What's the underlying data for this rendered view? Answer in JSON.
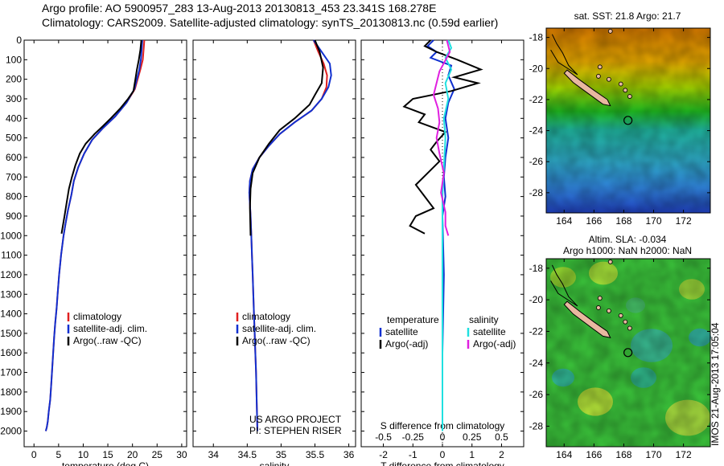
{
  "header": {
    "line1": "Argo profile: AO 5900957_283 13-Aug-2013 20130813_453 23.341S 168.278E",
    "line2": "Climatology: CARS2009. Satellite-adjusted climatology: synTS_20130813.nc (0.59d earlier)"
  },
  "colors": {
    "climatology": "#e02020",
    "satellite": "#1030d0",
    "argo": "#000000",
    "sat_salinity": "#20e0e0",
    "argo_salinity": "#e020e0"
  },
  "chart_data": [
    {
      "type": "line",
      "xlabel": "temperature (deg C)",
      "ylabel": "",
      "xlim": [
        -2,
        31
      ],
      "ylim": [
        0,
        2080
      ],
      "y_inverted": true,
      "xticks": [
        0,
        5,
        10,
        15,
        20,
        25,
        30
      ],
      "yticks": [
        0,
        100,
        200,
        300,
        400,
        500,
        600,
        700,
        800,
        900,
        1000,
        1100,
        1200,
        1300,
        1400,
        1500,
        1600,
        1700,
        1800,
        1900,
        2000
      ],
      "legend_position": "bottom-center",
      "series": [
        {
          "name": "climatology",
          "color": "#e02020",
          "x": [
            22.4,
            22.3,
            22.1,
            21.6,
            20.5,
            18.8,
            16.5,
            14,
            11.8,
            10.2,
            9,
            8.1,
            7.6,
            6.9,
            6.4,
            6,
            5.5,
            5.1,
            4.8,
            4.6,
            4.3,
            4.1,
            3.9,
            3.7,
            3.5,
            3.3,
            3,
            2.8,
            2.6,
            2.4
          ],
          "y": [
            0,
            40,
            100,
            150,
            250,
            320,
            390,
            450,
            510,
            580,
            650,
            720,
            790,
            870,
            940,
            1000,
            1100,
            1200,
            1300,
            1370,
            1450,
            1520,
            1600,
            1680,
            1760,
            1840,
            1900,
            1950,
            1980,
            2000
          ]
        },
        {
          "name": "satellite-adj. clim.",
          "color": "#1030d0",
          "x": [
            22,
            21.9,
            21.7,
            21.4,
            20.4,
            18.8,
            16.5,
            14,
            11.8,
            10.2,
            9,
            8.1,
            7.6,
            6.9,
            6.4,
            6,
            5.5,
            5.1,
            4.8,
            4.6,
            4.3,
            4.1,
            3.9,
            3.7,
            3.5,
            3.3,
            3,
            2.8,
            2.6,
            2.4
          ],
          "y": [
            0,
            40,
            100,
            150,
            250,
            320,
            390,
            450,
            510,
            580,
            650,
            720,
            790,
            870,
            940,
            1000,
            1100,
            1200,
            1300,
            1370,
            1450,
            1520,
            1600,
            1680,
            1760,
            1840,
            1900,
            1950,
            1980,
            2000
          ]
        },
        {
          "name": "Argo(..raw -QC)",
          "color": "#000000",
          "x": [
            21.8,
            21.6,
            21.3,
            20.9,
            20.6,
            20.2,
            19.1,
            17.5,
            15.6,
            14,
            12.3,
            10.5,
            9.3,
            8.4,
            7.7,
            7.1,
            6.7,
            6.2,
            5.6
          ],
          "y": [
            0,
            50,
            100,
            150,
            200,
            260,
            300,
            350,
            400,
            440,
            480,
            530,
            580,
            640,
            700,
            760,
            820,
            900,
            990
          ]
        }
      ],
      "legend": [
        "climatology",
        "satellite-adj. clim.",
        "Argo(..raw -QC)"
      ]
    },
    {
      "type": "line",
      "xlabel": "salinity",
      "xlim": [
        33.7,
        36.1
      ],
      "ylim": [
        0,
        2080
      ],
      "y_inverted": true,
      "xticks": [
        34,
        34.5,
        35,
        35.5,
        36
      ],
      "legend_position": "bottom-center",
      "series": [
        {
          "name": "climatology",
          "color": "#e02020",
          "x": [
            35.48,
            35.55,
            35.63,
            35.68,
            35.67,
            35.6,
            35.45,
            35.2,
            34.98,
            34.82,
            34.68,
            34.58,
            34.54,
            34.53,
            34.54,
            34.55,
            34.56,
            34.57,
            34.58,
            34.59,
            34.6,
            34.61,
            34.62,
            34.63,
            34.64,
            34.65
          ],
          "y": [
            0,
            60,
            120,
            180,
            240,
            300,
            360,
            420,
            480,
            540,
            600,
            660,
            720,
            780,
            840,
            900,
            1000,
            1100,
            1200,
            1300,
            1400,
            1500,
            1600,
            1700,
            1850,
            2000
          ]
        },
        {
          "name": "satellite-adj. clim.",
          "color": "#1030d0",
          "x": [
            35.48,
            35.6,
            35.72,
            35.74,
            35.7,
            35.6,
            35.45,
            35.2,
            34.98,
            34.82,
            34.68,
            34.58,
            34.54,
            34.53,
            34.54,
            34.55,
            34.56,
            34.57,
            34.58,
            34.59,
            34.6,
            34.61,
            34.62,
            34.63,
            34.64,
            34.65
          ],
          "y": [
            0,
            60,
            120,
            180,
            240,
            300,
            360,
            420,
            480,
            540,
            600,
            660,
            720,
            780,
            840,
            900,
            1000,
            1100,
            1200,
            1300,
            1400,
            1500,
            1600,
            1700,
            1850,
            2000
          ]
        },
        {
          "name": "Argo(..raw -QC)",
          "color": "#000000",
          "x": [
            35.5,
            35.57,
            35.62,
            35.6,
            35.5,
            35.42,
            35.2,
            34.98,
            34.82,
            34.68,
            34.58,
            34.55,
            34.54,
            34.55
          ],
          "y": [
            0,
            60,
            140,
            220,
            280,
            330,
            400,
            460,
            530,
            600,
            680,
            760,
            860,
            1000
          ]
        }
      ],
      "legend": [
        "climatology",
        "satellite-adj. clim.",
        "Argo(..raw -QC)"
      ],
      "annotation": [
        "US ARGO PROJECT",
        "PI: STEPHEN RISER"
      ]
    },
    {
      "type": "line",
      "xlabel": "T difference from climatology",
      "xlabel_top": "S difference from climatology",
      "xlim": [
        -2.75,
        2.75
      ],
      "ylim": [
        0,
        2080
      ],
      "y_inverted": true,
      "xticks": [
        -2,
        -1,
        0,
        1,
        2
      ],
      "xticks_top_labels": [
        "-0.5",
        "-0.25",
        "0",
        "0.25",
        "0.5"
      ],
      "legend_headers": [
        "temperature",
        "salinity"
      ],
      "series": [
        {
          "name": "satellite",
          "group": "temperature",
          "color": "#1030d0",
          "x": [
            -0.3,
            -0.5,
            -0.2,
            -0.4,
            0.3,
            0.2,
            0.4,
            0.2,
            0.1,
            0.2,
            0.1,
            0.05,
            0.1,
            0,
            0.05,
            0,
            0
          ],
          "y": [
            0,
            30,
            60,
            90,
            130,
            180,
            250,
            320,
            400,
            500,
            600,
            700,
            800,
            900,
            1200,
            1600,
            2000
          ]
        },
        {
          "name": "Argo(-adj)",
          "group": "temperature",
          "color": "#000000",
          "x": [
            -0.4,
            -0.6,
            -0.2,
            0.5,
            1.3,
            0.4,
            1.2,
            0.3,
            -1,
            -1.3,
            -0.6,
            -0.8,
            0.1,
            -0.2,
            -0.4,
            -0.1,
            -0.5,
            -0.9,
            -0.6,
            -0.3,
            -0.9,
            -1.1,
            -0.6
          ],
          "y": [
            0,
            30,
            60,
            100,
            150,
            190,
            220,
            260,
            300,
            340,
            380,
            420,
            470,
            520,
            560,
            620,
            680,
            740,
            800,
            860,
            900,
            950,
            990
          ]
        },
        {
          "name": "satellite",
          "group": "salinity",
          "color": "#20e0e0",
          "x": [
            0.2,
            0.3,
            0.1,
            0.3,
            0.1,
            0.2,
            0.05,
            0.1,
            0.05,
            0,
            0,
            0,
            0,
            0
          ],
          "y": [
            0,
            40,
            90,
            150,
            220,
            300,
            400,
            500,
            650,
            800,
            1000,
            1300,
            1700,
            2000
          ]
        },
        {
          "name": "Argo(-adj)",
          "group": "salinity",
          "color": "#e020e0",
          "x": [
            0.15,
            0.25,
            -0.1,
            -0.3,
            -0.15,
            -0.1,
            -0.2,
            -0.1,
            0.05,
            -0.05,
            0.1,
            0.1,
            0.2
          ],
          "y": [
            0,
            60,
            160,
            280,
            350,
            420,
            500,
            580,
            680,
            780,
            880,
            950,
            1000
          ]
        }
      ],
      "legend": [
        "satellite",
        "Argo(-adj)",
        "satellite",
        "Argo(-adj)"
      ]
    },
    {
      "type": "heatmap",
      "title": "sat. SST: 21.8  Argo: 21.7",
      "xticks": [
        164,
        166,
        168,
        170,
        172
      ],
      "yticks": [
        -18,
        -20,
        -22,
        -24,
        -26,
        -28
      ],
      "xlim": [
        162.8,
        173.8
      ],
      "ylim": [
        -29.3,
        -17.4
      ],
      "marker": {
        "lon": 168.28,
        "lat": -23.34
      }
    },
    {
      "type": "heatmap",
      "title": "Altim. SLA: -0.034",
      "subtitle": "Argo h1000: NaN h2000: NaN",
      "xticks": [
        164,
        166,
        168,
        170,
        172
      ],
      "yticks": [
        -18,
        -20,
        -22,
        -24,
        -26,
        -28
      ],
      "xlim": [
        162.8,
        173.8
      ],
      "ylim": [
        -29.3,
        -17.4
      ],
      "marker": {
        "lon": 168.28,
        "lat": -23.34
      }
    }
  ],
  "footer": {
    "imos_stamp": "IMOS 21-Aug-2013 17:05:04"
  }
}
